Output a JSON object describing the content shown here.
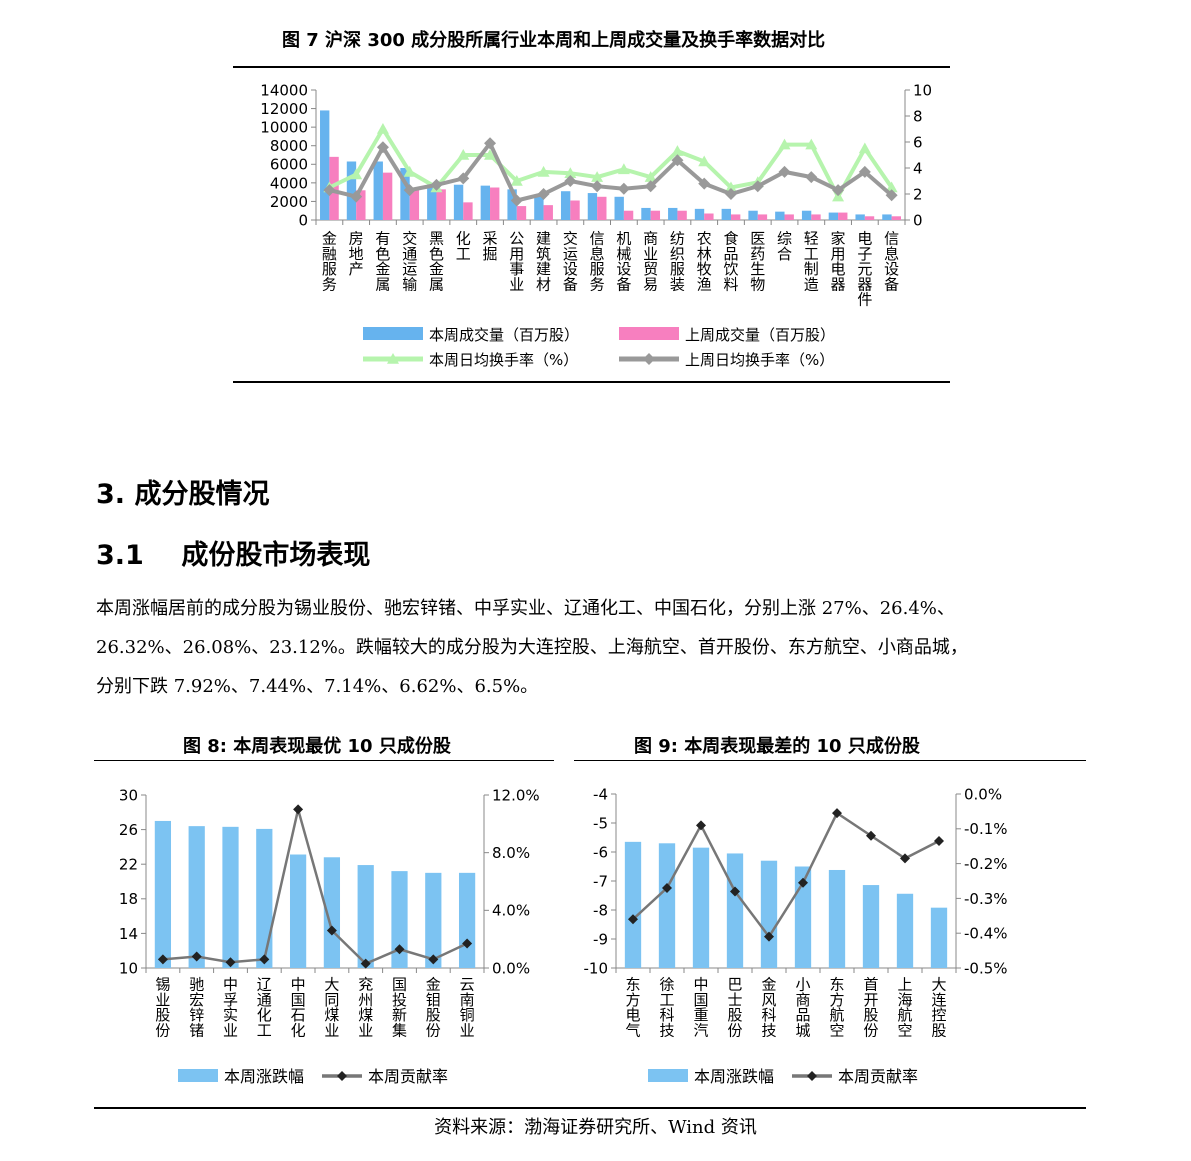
{
  "fig7": {
    "title": "图 7  沪深 300 成分股所属行业本周和上周成交量及换手率数据对比",
    "chart_data": {
      "type": "bar",
      "categories": [
        "金融服务",
        "房地产",
        "有色金属",
        "交通运输",
        "黑色金属",
        "化工",
        "采掘",
        "公用事业",
        "建筑建材",
        "交运设备",
        "信息服务",
        "机械设备",
        "商业贸易",
        "纺织服装",
        "农林牧渔",
        "食品饮料",
        "医药生物",
        "综合",
        "轻工制造",
        "家用电器",
        "电子元器件",
        "信息设备"
      ],
      "y_left_ticks": [
        "0",
        "2000",
        "4000",
        "6000",
        "8000",
        "10000",
        "12000",
        "14000"
      ],
      "y_right_ticks": [
        "0",
        "2",
        "4",
        "6",
        "8",
        "10"
      ],
      "ylim_left": [
        0,
        14000
      ],
      "ylim_right": [
        0,
        10
      ],
      "series": [
        {
          "name": "本周成交量（百万股）",
          "kind": "bar",
          "axis": "left",
          "color": "#66b3ee",
          "values": [
            11800,
            6300,
            6300,
            5600,
            3600,
            3800,
            3700,
            3300,
            2700,
            3100,
            2900,
            2500,
            1300,
            1300,
            1200,
            1200,
            1000,
            900,
            1000,
            800,
            600,
            600
          ]
        },
        {
          "name": "上周成交量（百万股）",
          "kind": "bar",
          "axis": "left",
          "color": "#f77fbf",
          "values": [
            6800,
            3200,
            5100,
            3400,
            3300,
            1900,
            3500,
            1500,
            1600,
            2100,
            2500,
            1000,
            1000,
            1000,
            700,
            600,
            600,
            600,
            600,
            800,
            400,
            400
          ]
        },
        {
          "name": "本周日均换手率（%）",
          "kind": "line",
          "axis": "right",
          "color": "#b6f4ad",
          "marker": "triangle",
          "values": [
            2.5,
            3.5,
            7.0,
            3.7,
            2.5,
            5.0,
            5.0,
            3.0,
            3.7,
            3.6,
            3.3,
            3.9,
            3.3,
            5.3,
            4.5,
            2.5,
            2.9,
            5.8,
            5.8,
            1.8,
            5.5,
            2.5
          ]
        },
        {
          "name": "上周日均换手率（%）",
          "kind": "line",
          "axis": "right",
          "color": "#999999",
          "marker": "diamond",
          "values": [
            2.3,
            1.8,
            5.6,
            2.3,
            2.7,
            3.2,
            5.9,
            1.5,
            2.0,
            3.0,
            2.6,
            2.4,
            2.6,
            4.6,
            2.8,
            2.0,
            2.6,
            3.7,
            3.3,
            2.3,
            3.7,
            1.9
          ]
        }
      ]
    }
  },
  "section3": {
    "number": "3.",
    "title": "成分股情况"
  },
  "section31": {
    "number": "3.1",
    "title": "成份股市场表现"
  },
  "paragraph": {
    "line1": "本周涨幅居前的成分股为锡业股份、驰宏锌锗、中孚实业、辽通化工、中国石化，分别上涨 27%、26.4%、",
    "line2": "26.32%、26.08%、23.12%。跌幅较大的成分股为大连控股、上海航空、首开股份、东方航空、小商品城，",
    "line3": "分别下跌 7.92%、7.44%、7.14%、6.62%、6.5%。"
  },
  "fig8": {
    "title": "图 8:  本周表现最优 10 只成份股",
    "chart_data": {
      "type": "bar",
      "categories": [
        "锡业股份",
        "驰宏锌锗",
        "中孚实业",
        "辽通化工",
        "中国石化",
        "大同煤业",
        "兖州煤业",
        "国投新集",
        "金钼股份",
        "云南铜业"
      ],
      "y_left_ticks": [
        "10",
        "14",
        "18",
        "22",
        "26",
        "30"
      ],
      "y_right_ticks": [
        "0.0%",
        "4.0%",
        "8.0%",
        "12.0%"
      ],
      "ylim_left": [
        10,
        30
      ],
      "ylim_right": [
        0,
        12
      ],
      "series": [
        {
          "name": "本周涨跌幅",
          "kind": "bar",
          "axis": "left",
          "color": "#7cc3f2",
          "values": [
            27,
            26.4,
            26.32,
            26.08,
            23.12,
            22.8,
            21.9,
            21.2,
            21.0,
            21.0
          ]
        },
        {
          "name": "本周贡献率",
          "kind": "line",
          "axis": "right",
          "color": "#777777",
          "marker": "diamond",
          "values": [
            0.6,
            0.8,
            0.4,
            0.6,
            11.0,
            2.6,
            0.3,
            1.3,
            0.6,
            1.7
          ]
        }
      ]
    }
  },
  "fig9": {
    "title": "图 9:  本周表现最差的 10 只成份股",
    "chart_data": {
      "type": "bar",
      "categories": [
        "东方电气",
        "徐工科技",
        "中国重汽",
        "巴士股份",
        "金风科技",
        "小商品城",
        "东方航空",
        "首开股份",
        "上海航空",
        "大连控股"
      ],
      "y_left_ticks": [
        "-10",
        "-9",
        "-8",
        "-7",
        "-6",
        "-5",
        "-4"
      ],
      "y_right_ticks": [
        "-0.5%",
        "-0.4%",
        "-0.3%",
        "-0.2%",
        "-0.1%",
        "0.0%"
      ],
      "ylim_left": [
        -10,
        -4
      ],
      "ylim_right": [
        -0.5,
        0
      ],
      "series": [
        {
          "name": "本周涨跌幅",
          "kind": "bar",
          "axis": "left",
          "color": "#7cc3f2",
          "values": [
            -5.65,
            -5.7,
            -5.85,
            -6.05,
            -6.3,
            -6.5,
            -6.62,
            -7.14,
            -7.44,
            -7.92
          ]
        },
        {
          "name": "本周贡献率",
          "kind": "line",
          "axis": "right",
          "color": "#777777",
          "marker": "diamond",
          "values": [
            -0.36,
            -0.27,
            -0.09,
            -0.28,
            -0.41,
            -0.255,
            -0.055,
            -0.12,
            -0.185,
            -0.135
          ]
        }
      ]
    }
  },
  "source": "资料来源：渤海证券研究所、Wind 资讯"
}
